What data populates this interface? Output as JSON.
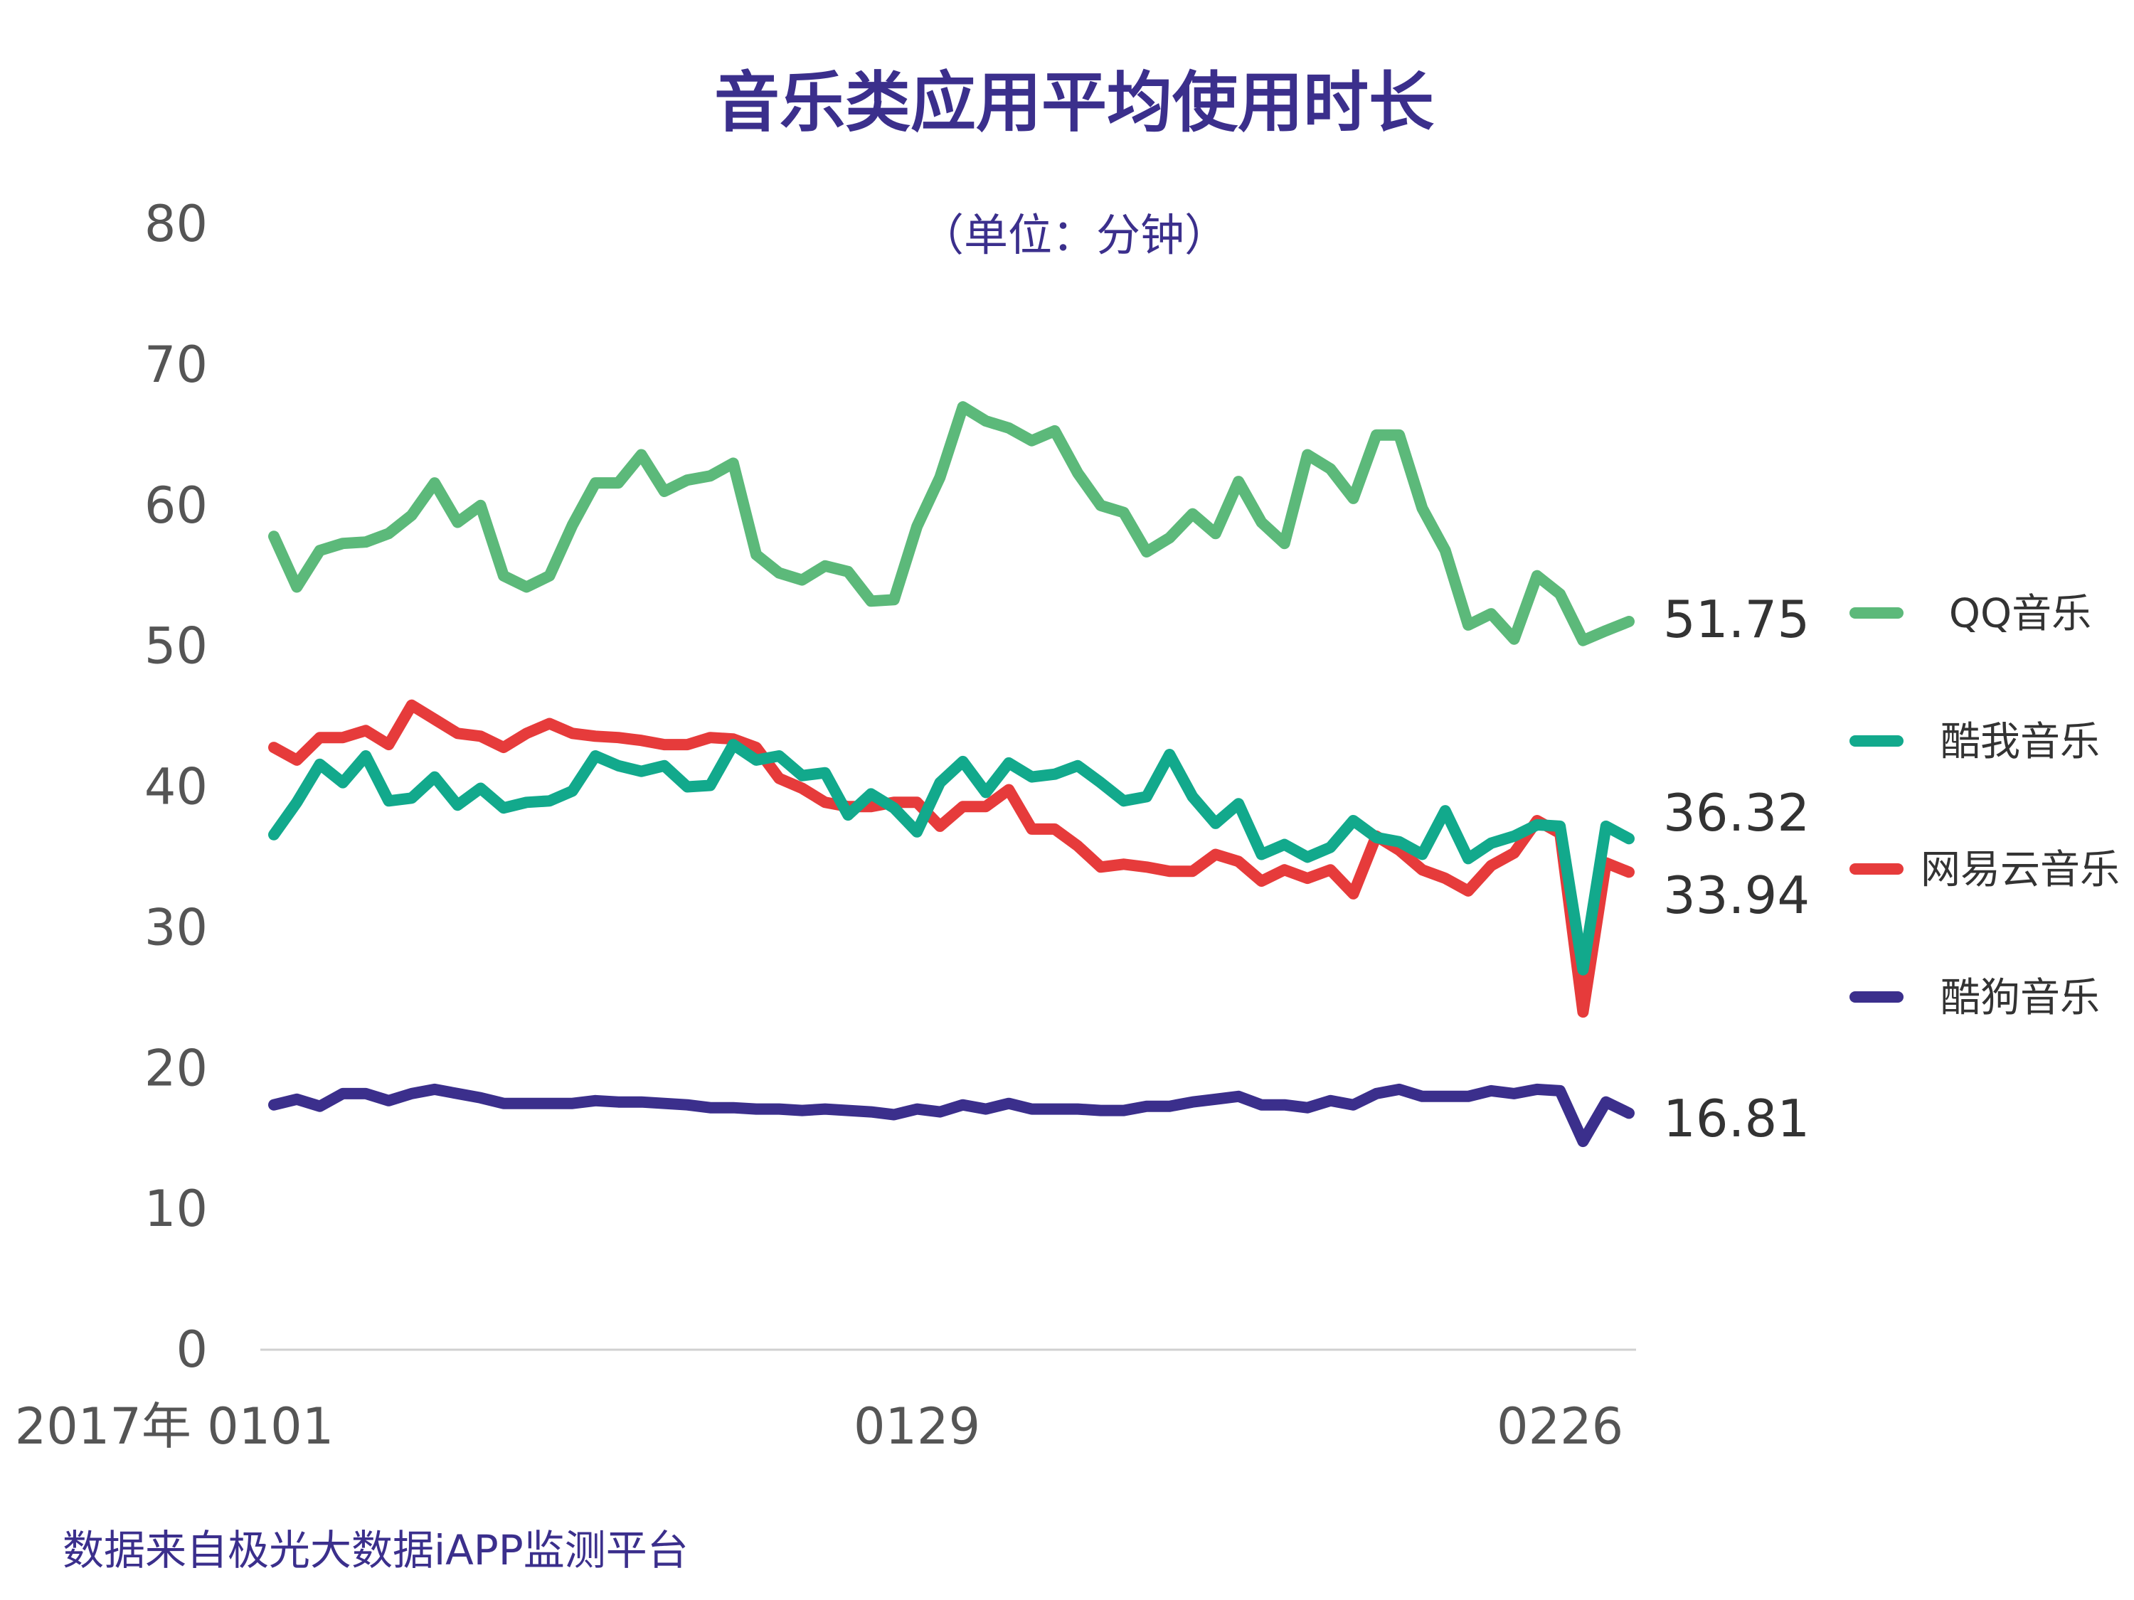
{
  "chart_data": {
    "type": "line",
    "title": "音乐类应用平均使用时长",
    "subtitle": "（单位：分钟）",
    "source": "数据来自极光大数据iAPP监测平台",
    "xlabel": "",
    "ylabel": "",
    "ylim": [
      0,
      80
    ],
    "yticks": [
      0,
      10,
      20,
      30,
      40,
      50,
      60,
      70,
      80
    ],
    "xtick_labels": [
      {
        "index": 0,
        "label": "2017年 0101"
      },
      {
        "index": 28,
        "label": "0129"
      },
      {
        "index": 56,
        "label": "0226"
      }
    ],
    "grid": false,
    "legend_position": "right",
    "series": [
      {
        "name": "QQ音乐",
        "color": "#5cb97a",
        "end_label": "51.75",
        "values": [
          57.8,
          54.2,
          56.8,
          57.3,
          57.4,
          58.0,
          59.3,
          61.6,
          58.8,
          60.0,
          55.0,
          54.2,
          55.0,
          58.6,
          61.6,
          61.6,
          63.6,
          61.0,
          61.8,
          62.1,
          63.0,
          56.5,
          55.2,
          54.7,
          55.7,
          55.3,
          53.2,
          53.3,
          58.5,
          62.0,
          67.0,
          66.0,
          65.5,
          64.6,
          65.3,
          62.3,
          60.0,
          59.5,
          56.7,
          57.7,
          59.4,
          58.0,
          61.7,
          58.8,
          57.3,
          63.6,
          62.6,
          60.5,
          65.0,
          65.0,
          59.8,
          56.8,
          51.5,
          52.3,
          50.5,
          55.0,
          53.7,
          50.4,
          51.1,
          51.75
        ]
      },
      {
        "name": "酷我音乐",
        "color": "#12a98c",
        "end_label": "36.32",
        "values": [
          36.6,
          38.9,
          41.6,
          40.3,
          42.2,
          39.0,
          39.2,
          40.7,
          38.7,
          39.9,
          38.5,
          38.9,
          39.0,
          39.7,
          42.2,
          41.5,
          41.1,
          41.5,
          40.0,
          40.1,
          43.0,
          41.9,
          42.2,
          40.8,
          41.0,
          38.0,
          39.5,
          38.5,
          36.8,
          40.3,
          41.8,
          39.6,
          41.7,
          40.7,
          40.9,
          41.5,
          40.3,
          39.0,
          39.3,
          42.3,
          39.3,
          37.4,
          38.8,
          35.2,
          35.9,
          35.0,
          35.7,
          37.6,
          36.4,
          36.1,
          35.2,
          38.3,
          34.9,
          36.0,
          36.5,
          37.3,
          37.2,
          27.0,
          37.2,
          36.32
        ]
      },
      {
        "name": "网易云音乐",
        "color": "#e63b3b",
        "end_label": "33.94",
        "values": [
          42.8,
          41.9,
          43.5,
          43.5,
          44.0,
          43.0,
          45.8,
          44.8,
          43.8,
          43.6,
          42.8,
          43.8,
          44.5,
          43.8,
          43.6,
          43.5,
          43.3,
          43.0,
          43.0,
          43.5,
          43.4,
          42.8,
          40.6,
          39.9,
          38.9,
          38.6,
          38.6,
          38.9,
          38.9,
          37.2,
          38.6,
          38.6,
          39.8,
          37.0,
          37.0,
          35.8,
          34.3,
          34.5,
          34.3,
          34.0,
          34.0,
          35.2,
          34.7,
          33.3,
          34.1,
          33.5,
          34.1,
          32.4,
          36.5,
          35.5,
          34.1,
          33.5,
          32.6,
          34.4,
          35.3,
          37.6,
          36.7,
          24.0,
          34.6,
          33.94
        ]
      },
      {
        "name": "酷狗音乐",
        "color": "#3b2f8c",
        "end_label": "16.81",
        "values": [
          17.4,
          17.8,
          17.3,
          18.2,
          18.2,
          17.7,
          18.2,
          18.5,
          18.2,
          17.9,
          17.5,
          17.5,
          17.5,
          17.5,
          17.7,
          17.6,
          17.6,
          17.5,
          17.4,
          17.2,
          17.2,
          17.1,
          17.1,
          17.0,
          17.1,
          17.0,
          16.9,
          16.7,
          17.1,
          16.9,
          17.4,
          17.1,
          17.5,
          17.1,
          17.1,
          17.1,
          17.0,
          17.0,
          17.3,
          17.3,
          17.6,
          17.8,
          18.0,
          17.4,
          17.4,
          17.2,
          17.7,
          17.4,
          18.2,
          18.5,
          18.0,
          18.0,
          18.0,
          18.4,
          18.2,
          18.5,
          18.4,
          14.8,
          17.6,
          16.81
        ]
      }
    ]
  }
}
